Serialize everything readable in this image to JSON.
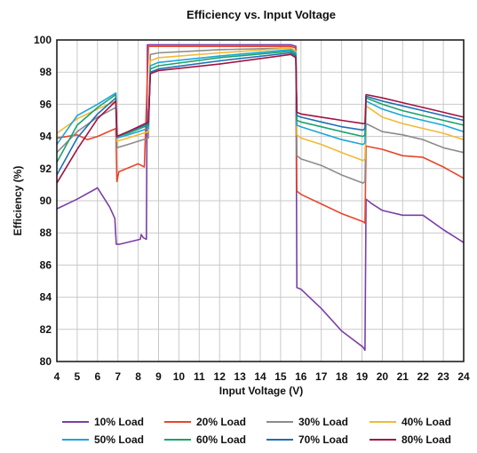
{
  "chart_data": {
    "type": "line",
    "title": "Efficiency vs. Input Voltage",
    "xlabel": "Input Voltage (V)",
    "ylabel": "Efficiency (%)",
    "xlim": [
      4,
      24
    ],
    "ylim": [
      80,
      100
    ],
    "xticks": [
      4,
      5,
      6,
      7,
      8,
      9,
      10,
      11,
      12,
      13,
      14,
      15,
      16,
      17,
      18,
      19,
      20,
      21,
      22,
      23,
      24
    ],
    "yticks": [
      80,
      82,
      84,
      86,
      88,
      90,
      92,
      94,
      96,
      98,
      100
    ],
    "grid": true,
    "legend_position": "bottom",
    "series": [
      {
        "name": "10% Load",
        "color": "#7b3fa6",
        "points": [
          [
            4,
            89.5
          ],
          [
            5,
            90.1
          ],
          [
            6,
            90.8
          ],
          [
            6.6,
            89.6
          ],
          [
            6.85,
            88.9
          ],
          [
            6.92,
            87.3
          ],
          [
            7.1,
            87.3
          ],
          [
            8.1,
            87.6
          ],
          [
            8.15,
            87.9
          ],
          [
            8.25,
            87.7
          ],
          [
            8.4,
            87.6
          ],
          [
            8.45,
            99.7
          ],
          [
            9,
            99.7
          ],
          [
            12,
            99.7
          ],
          [
            15.5,
            99.7
          ],
          [
            15.75,
            99.6
          ],
          [
            15.8,
            84.6
          ],
          [
            16,
            84.5
          ],
          [
            17,
            83.3
          ],
          [
            18,
            81.9
          ],
          [
            19.05,
            80.9
          ],
          [
            19.15,
            80.7
          ],
          [
            19.2,
            90.1
          ],
          [
            19.5,
            89.8
          ],
          [
            20,
            89.4
          ],
          [
            21,
            89.1
          ],
          [
            22,
            89.1
          ],
          [
            23,
            88.2
          ],
          [
            24,
            87.4
          ]
        ]
      },
      {
        "name": "20% Load",
        "color": "#e8452a",
        "points": [
          [
            4,
            93.9
          ],
          [
            5,
            94.1
          ],
          [
            5.5,
            93.8
          ],
          [
            6,
            94.0
          ],
          [
            6.9,
            94.5
          ],
          [
            6.95,
            91.2
          ],
          [
            7.05,
            91.8
          ],
          [
            8,
            92.3
          ],
          [
            8.3,
            92.1
          ],
          [
            8.5,
            99.6
          ],
          [
            9,
            99.6
          ],
          [
            12,
            99.6
          ],
          [
            15.5,
            99.6
          ],
          [
            15.75,
            99.5
          ],
          [
            15.8,
            90.6
          ],
          [
            16,
            90.4
          ],
          [
            17,
            89.8
          ],
          [
            18,
            89.2
          ],
          [
            19.05,
            88.7
          ],
          [
            19.15,
            88.6
          ],
          [
            19.2,
            93.4
          ],
          [
            20,
            93.2
          ],
          [
            21,
            92.8
          ],
          [
            22,
            92.7
          ],
          [
            23,
            92.1
          ],
          [
            24,
            91.4
          ]
        ]
      },
      {
        "name": "30% Load",
        "color": "#8c8c8c",
        "points": [
          [
            4,
            93.0
          ],
          [
            5,
            94.3
          ],
          [
            6,
            95.2
          ],
          [
            6.9,
            95.8
          ],
          [
            6.95,
            93.3
          ],
          [
            7.5,
            93.5
          ],
          [
            8.5,
            93.9
          ],
          [
            8.6,
            99.1
          ],
          [
            9,
            99.2
          ],
          [
            12,
            99.4
          ],
          [
            15.5,
            99.5
          ],
          [
            15.75,
            99.3
          ],
          [
            15.8,
            92.8
          ],
          [
            16,
            92.6
          ],
          [
            17,
            92.2
          ],
          [
            18,
            91.6
          ],
          [
            19.05,
            91.1
          ],
          [
            19.15,
            91.2
          ],
          [
            19.2,
            94.8
          ],
          [
            20,
            94.3
          ],
          [
            21,
            94.1
          ],
          [
            22,
            93.8
          ],
          [
            23,
            93.3
          ],
          [
            24,
            93.0
          ]
        ]
      },
      {
        "name": "40% Load",
        "color": "#f2b934",
        "points": [
          [
            4,
            94.2
          ],
          [
            5,
            95.1
          ],
          [
            6,
            95.7
          ],
          [
            6.9,
            96.2
          ],
          [
            6.95,
            93.7
          ],
          [
            7.5,
            93.9
          ],
          [
            8.5,
            94.3
          ],
          [
            8.6,
            98.7
          ],
          [
            9,
            98.9
          ],
          [
            12,
            99.2
          ],
          [
            15.5,
            99.5
          ],
          [
            15.75,
            99.3
          ],
          [
            15.8,
            94.1
          ],
          [
            16,
            93.9
          ],
          [
            17,
            93.5
          ],
          [
            18,
            93.0
          ],
          [
            19.05,
            92.5
          ],
          [
            19.15,
            92.6
          ],
          [
            19.2,
            95.9
          ],
          [
            20,
            95.2
          ],
          [
            21,
            94.8
          ],
          [
            22,
            94.5
          ],
          [
            23,
            94.2
          ],
          [
            24,
            93.8
          ]
        ]
      },
      {
        "name": "50% Load",
        "color": "#1aa7d9",
        "points": [
          [
            4,
            93.5
          ],
          [
            5,
            95.3
          ],
          [
            6,
            96.0
          ],
          [
            6.9,
            96.7
          ],
          [
            6.95,
            93.9
          ],
          [
            7.5,
            94.1
          ],
          [
            8.5,
            94.5
          ],
          [
            8.6,
            98.4
          ],
          [
            9,
            98.6
          ],
          [
            12,
            99.0
          ],
          [
            15.5,
            99.4
          ],
          [
            15.75,
            99.2
          ],
          [
            15.8,
            94.7
          ],
          [
            16,
            94.6
          ],
          [
            17,
            94.2
          ],
          [
            18,
            93.8
          ],
          [
            19.05,
            93.5
          ],
          [
            19.15,
            93.6
          ],
          [
            19.2,
            96.2
          ],
          [
            20,
            95.7
          ],
          [
            21,
            95.3
          ],
          [
            22,
            95.0
          ],
          [
            23,
            94.7
          ],
          [
            24,
            94.3
          ]
        ]
      },
      {
        "name": "60% Load",
        "color": "#1aa36b",
        "points": [
          [
            4,
            92.4
          ],
          [
            5,
            94.7
          ],
          [
            6,
            95.8
          ],
          [
            6.9,
            96.6
          ],
          [
            6.95,
            94.0
          ],
          [
            7.5,
            94.2
          ],
          [
            8.5,
            94.7
          ],
          [
            8.6,
            98.2
          ],
          [
            9,
            98.4
          ],
          [
            12,
            98.9
          ],
          [
            15.5,
            99.3
          ],
          [
            15.75,
            99.1
          ],
          [
            15.8,
            95.0
          ],
          [
            16,
            94.9
          ],
          [
            17,
            94.6
          ],
          [
            18,
            94.3
          ],
          [
            19.05,
            94.0
          ],
          [
            19.15,
            94.1
          ],
          [
            19.2,
            96.4
          ],
          [
            20,
            96.0
          ],
          [
            21,
            95.6
          ],
          [
            22,
            95.3
          ],
          [
            23,
            95.0
          ],
          [
            24,
            94.7
          ]
        ]
      },
      {
        "name": "70% Load",
        "color": "#1f6fb5",
        "points": [
          [
            4,
            91.6
          ],
          [
            5,
            93.9
          ],
          [
            6,
            95.4
          ],
          [
            6.9,
            96.4
          ],
          [
            6.95,
            94.0
          ],
          [
            7.5,
            94.3
          ],
          [
            8.5,
            94.8
          ],
          [
            8.6,
            98.0
          ],
          [
            9,
            98.2
          ],
          [
            12,
            98.7
          ],
          [
            15.5,
            99.2
          ],
          [
            15.75,
            99.0
          ],
          [
            15.8,
            95.3
          ],
          [
            16,
            95.2
          ],
          [
            17,
            94.9
          ],
          [
            18,
            94.6
          ],
          [
            19.05,
            94.4
          ],
          [
            19.15,
            94.5
          ],
          [
            19.2,
            96.5
          ],
          [
            20,
            96.2
          ],
          [
            21,
            95.9
          ],
          [
            22,
            95.6
          ],
          [
            23,
            95.3
          ],
          [
            24,
            95.0
          ]
        ]
      },
      {
        "name": "80% Load",
        "color": "#a3123f",
        "points": [
          [
            4,
            91.1
          ],
          [
            5,
            93.2
          ],
          [
            6,
            95.1
          ],
          [
            6.9,
            96.2
          ],
          [
            6.95,
            94.0
          ],
          [
            7.5,
            94.3
          ],
          [
            8.5,
            94.9
          ],
          [
            8.6,
            97.9
          ],
          [
            9,
            98.1
          ],
          [
            12,
            98.5
          ],
          [
            15.5,
            99.1
          ],
          [
            15.75,
            98.9
          ],
          [
            15.8,
            95.5
          ],
          [
            16,
            95.4
          ],
          [
            17,
            95.2
          ],
          [
            18,
            95.0
          ],
          [
            19.05,
            94.8
          ],
          [
            19.15,
            94.8
          ],
          [
            19.2,
            96.6
          ],
          [
            20,
            96.4
          ],
          [
            21,
            96.1
          ],
          [
            22,
            95.8
          ],
          [
            23,
            95.5
          ],
          [
            24,
            95.2
          ]
        ]
      }
    ]
  }
}
